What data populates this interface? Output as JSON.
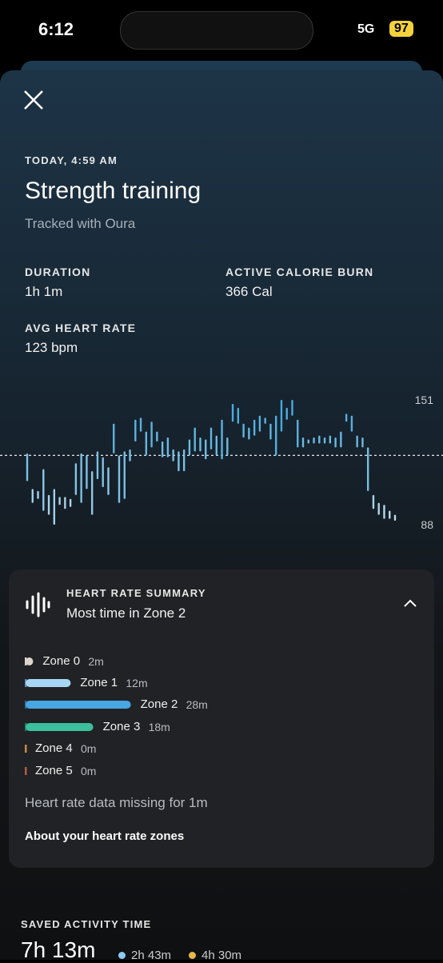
{
  "status_bar": {
    "time": "6:12",
    "network": "5G",
    "battery": "97"
  },
  "header": {
    "date": "TODAY, 4:59 AM",
    "title": "Strength training",
    "subtitle": "Tracked with Oura"
  },
  "stats": [
    {
      "label": "DURATION",
      "value": "1h 1m"
    },
    {
      "label": "ACTIVE CALORIE BURN",
      "value": "366 Cal"
    },
    {
      "label": "AVG HEART RATE",
      "value": "123 bpm"
    }
  ],
  "hr_chart": {
    "type": "range-bar",
    "ylim": [
      88,
      151
    ],
    "yticks": [
      88,
      151
    ],
    "average": 123,
    "lows": [
      110,
      99,
      101,
      95,
      93,
      88,
      98,
      96,
      97,
      103,
      99,
      106,
      93,
      111,
      107,
      103,
      124,
      99,
      101,
      120,
      130,
      135,
      123,
      127,
      130,
      122,
      122,
      120,
      115,
      115,
      123,
      125,
      125,
      121,
      126,
      123,
      121,
      123,
      140,
      139,
      132,
      131,
      133,
      135,
      139,
      131,
      123,
      135,
      141,
      143,
      127,
      127,
      129,
      129,
      129,
      129,
      129,
      127,
      127,
      140,
      135,
      127,
      127,
      105,
      96,
      93,
      91,
      91,
      90
    ],
    "highs": [
      124,
      106,
      105,
      116,
      103,
      106,
      102,
      102,
      101,
      119,
      124,
      123,
      115,
      125,
      122,
      117,
      139,
      123,
      125,
      126,
      141,
      142,
      135,
      140,
      135,
      130,
      132,
      126,
      125,
      126,
      131,
      137,
      132,
      131,
      137,
      133,
      141,
      132,
      149,
      147,
      139,
      137,
      141,
      143,
      142,
      139,
      143,
      151,
      147,
      151,
      141,
      132,
      131,
      132,
      133,
      132,
      133,
      132,
      135,
      144,
      143,
      133,
      132,
      127,
      103,
      99,
      98,
      95,
      93
    ]
  },
  "summary": {
    "label": "HEART RATE SUMMARY",
    "headline": "Most time in Zone 2",
    "zones": [
      {
        "name": "Zone 0",
        "time": "2m",
        "minutes": 2
      },
      {
        "name": "Zone 1",
        "time": "12m",
        "minutes": 12
      },
      {
        "name": "Zone 2",
        "time": "28m",
        "minutes": 28
      },
      {
        "name": "Zone 3",
        "time": "18m",
        "minutes": 18
      },
      {
        "name": "Zone 4",
        "time": "0m",
        "minutes": 0
      },
      {
        "name": "Zone 5",
        "time": "0m",
        "minutes": 0
      }
    ],
    "missing": "Heart rate data missing for 1m",
    "link": "About your heart rate zones"
  },
  "saved": {
    "label": "SAVED ACTIVITY TIME",
    "total": "7h 13m",
    "parts": [
      "2h 43m",
      "4h 30m"
    ]
  }
}
